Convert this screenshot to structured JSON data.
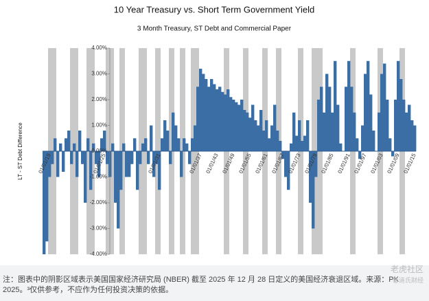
{
  "chart_data": {
    "type": "bar",
    "title": "10 Year Treasury vs. Short Term Government Yield",
    "subtitle": "3 Month Treasury, ST Debt and Commercial Paper",
    "y_label": "LT - ST Debt Difference",
    "color": "#3b6ea5",
    "shade_color": "#c9c9c9",
    "ylim": [
      -4,
      4
    ],
    "yticks": [
      {
        "value": -4,
        "label": "-4.00%"
      },
      {
        "value": -3,
        "label": "-3.00%"
      },
      {
        "value": -2,
        "label": "-2.00%"
      },
      {
        "value": -1,
        "label": "-1.00%"
      },
      {
        "value": 0,
        "label": "0.00%"
      },
      {
        "value": 1,
        "label": "1.00%"
      },
      {
        "value": 2,
        "label": "2.00%"
      },
      {
        "value": 3,
        "label": "3.00%"
      },
      {
        "value": 4,
        "label": "4.00%"
      }
    ],
    "categories": [
      null,
      null,
      "01/01/19",
      null,
      null,
      null,
      null,
      null,
      null,
      null,
      null,
      null,
      null,
      null,
      null,
      null,
      null,
      null,
      null,
      null,
      null,
      null,
      "01/01/25",
      null,
      null,
      null,
      null,
      null,
      null,
      null,
      null,
      null,
      null,
      null,
      null,
      null,
      null,
      null,
      null,
      null,
      null,
      null,
      "01/01/31",
      null,
      null,
      null,
      null,
      null,
      null,
      null,
      null,
      null,
      null,
      null,
      null,
      null,
      null,
      "01/01/37",
      null,
      null,
      null,
      null,
      null,
      "01/01/43",
      null,
      null,
      null,
      null,
      null,
      "01/01/49",
      null,
      null,
      null,
      null,
      null,
      "01/01/55",
      null,
      null,
      null,
      null,
      null,
      "01/01/61",
      null,
      null,
      null,
      null,
      null,
      "01/01/67",
      null,
      null,
      null,
      null,
      null,
      "01/01/73",
      null,
      null,
      null,
      null,
      null,
      "01/01/79",
      null,
      null,
      null,
      null,
      null,
      "01/01/85",
      null,
      null,
      null,
      null,
      null,
      "01/01/91",
      null,
      null,
      null,
      null,
      null,
      "01/01/97",
      null,
      null,
      null,
      null,
      null,
      "01/01/03",
      null,
      null,
      null,
      null,
      null,
      "01/01/09",
      null,
      null,
      null,
      null,
      null,
      "01/01/15"
    ],
    "values": [
      -4,
      -3.5,
      -1,
      -0.5,
      0.5,
      -1,
      0.3,
      -0.8,
      0.5,
      0.8,
      -0.5,
      0.3,
      -1,
      0.8,
      -0.5,
      -2,
      0.5,
      -1.5,
      0.3,
      -0.5,
      -1,
      0.5,
      0.8,
      -0.5,
      -1,
      0.3,
      -2,
      -3,
      -1.5,
      0.3,
      -1,
      -1,
      -0.5,
      0.5,
      -1.5,
      -0.5,
      0.3,
      0.5,
      -0.5,
      1,
      -1,
      -0.5,
      -1.5,
      0.5,
      1.2,
      0.8,
      -0.5,
      1.5,
      1,
      0.5,
      -1,
      0.5,
      0.3,
      -0.5,
      0.5,
      1,
      2.5,
      3.2,
      3,
      2.8,
      2.5,
      2.8,
      2.6,
      2.4,
      2.5,
      2.3,
      2.2,
      2.4,
      2.1,
      2,
      1.9,
      1.8,
      2,
      1.6,
      1.5,
      1.3,
      1.8,
      1.2,
      1,
      1.6,
      0.8,
      1.2,
      0.5,
      1,
      1.8,
      0.8,
      0.4,
      -0.3,
      -1,
      -1.5,
      0.3,
      1.5,
      0.6,
      1.2,
      0.4,
      0.6,
      1.2,
      -2,
      -3,
      -1,
      2,
      2.5,
      1.5,
      3,
      2.5,
      1.5,
      3.5,
      1.8,
      0.3,
      0,
      2.5,
      3.5,
      2.5,
      1.5,
      0.5,
      -0.3,
      1,
      3,
      3.5,
      2.2,
      0.8,
      0,
      1.5,
      3,
      3.4,
      2,
      0.5,
      -0.2,
      2,
      3.5,
      2.8,
      2,
      1.5,
      1.8,
      1.2,
      1
    ],
    "shaded_ranges": [
      [
        2,
        4
      ],
      [
        10,
        12
      ],
      [
        16,
        18
      ],
      [
        23,
        25
      ],
      [
        28,
        29
      ],
      [
        35,
        37
      ],
      [
        41,
        42
      ],
      [
        46,
        47
      ],
      [
        50,
        51
      ],
      [
        54,
        56
      ],
      [
        66,
        67
      ],
      [
        73,
        74
      ],
      [
        80,
        81
      ],
      [
        85,
        86
      ],
      [
        93,
        94
      ],
      [
        98,
        99
      ],
      [
        100,
        101
      ],
      [
        112,
        113
      ],
      [
        122,
        123
      ],
      [
        130,
        131
      ]
    ]
  },
  "footnote": [
    "注：图表中的阴影区域表示美国国家经济研究局 (NBER) 截至 2025 年 12 月 28 日定义的美国经济衰退区域。来源：PK",
    "2025。³仅供参考，不应作为任何投资决策的依据。"
  ],
  "watermark": [
    "老虎社区",
    "@道氏财经"
  ]
}
